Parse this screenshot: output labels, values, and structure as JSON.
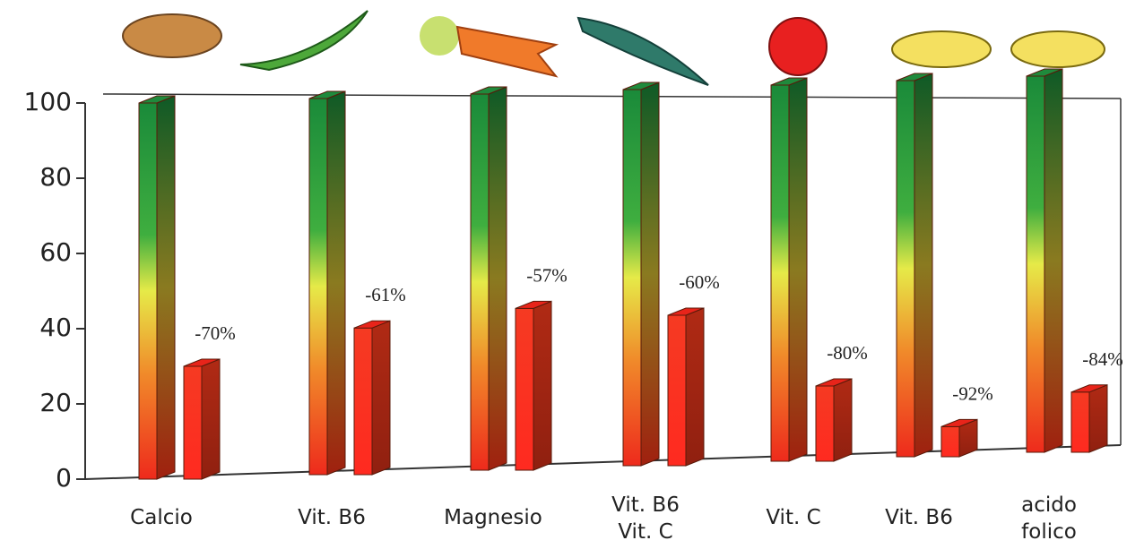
{
  "chart_data": {
    "type": "bar3d",
    "categories": [
      "Calcio",
      "Vit. B6",
      "Magnesio",
      "Vit. B6\nVit. C",
      "Vit. C",
      "Vit. B6",
      "acido\nfolico"
    ],
    "series": [
      {
        "color": "#1f8a3c",
        "values": [
          100,
          100,
          100,
          100,
          100,
          100,
          100
        ]
      },
      {
        "color": "#e8241a",
        "values": [
          30,
          39,
          43,
          40,
          20,
          8,
          16
        ]
      }
    ],
    "change_labels": [
      "-70%",
      "-61%",
      "-57%",
      "-60%",
      "-80%",
      "-92%",
      "-84%"
    ],
    "ylim": [
      0,
      100
    ],
    "yticks": [
      0,
      20,
      40,
      60,
      80,
      100
    ]
  }
}
